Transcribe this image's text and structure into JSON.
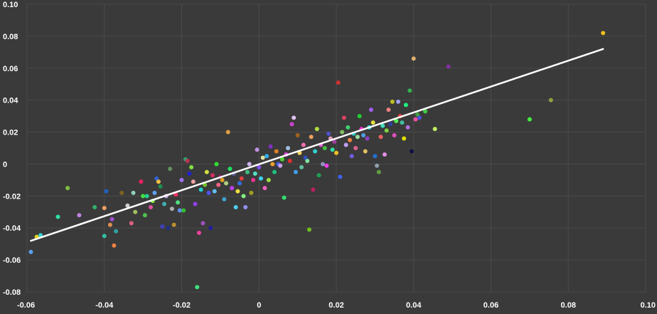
{
  "chart_data": {
    "type": "scatter",
    "title": "",
    "xlabel": "",
    "ylabel": "",
    "xlim": [
      -0.06,
      0.1
    ],
    "ylim": [
      -0.08,
      0.1
    ],
    "x_ticks": [
      "-0.06",
      "-0.04",
      "-0.02",
      "0",
      "0.02",
      "0.04",
      "0.06",
      "0.08",
      "0.10"
    ],
    "y_ticks": [
      "-0.08",
      "-0.06",
      "-0.04",
      "-0.02",
      "0",
      "0.02",
      "0.04",
      "0.06",
      "0.08",
      "0.10"
    ],
    "grid": true,
    "background": "#3a3a3a",
    "grid_color": "#4a4a4a",
    "trendline": {
      "color": "#ffffff",
      "from": [
        -0.059,
        -0.048
      ],
      "to": [
        0.089,
        0.072
      ]
    },
    "points": [
      [
        -0.059,
        -0.055,
        "#5aa0f0"
      ],
      [
        -0.0565,
        -0.0445,
        "#3ad5d5"
      ],
      [
        -0.0575,
        -0.0455,
        "#e0d020"
      ],
      [
        -0.052,
        -0.033,
        "#30e0a0"
      ],
      [
        -0.0495,
        -0.015,
        "#80c040"
      ],
      [
        -0.0465,
        -0.032,
        "#c080e0"
      ],
      [
        -0.0425,
        -0.027,
        "#30b070"
      ],
      [
        -0.04,
        -0.0275,
        "#f0a060"
      ],
      [
        -0.0395,
        -0.017,
        "#2060c0"
      ],
      [
        -0.04,
        -0.045,
        "#30c0a0"
      ],
      [
        -0.0385,
        -0.038,
        "#e09050"
      ],
      [
        -0.038,
        -0.0345,
        "#a050d0"
      ],
      [
        -0.0375,
        -0.051,
        "#f08040"
      ],
      [
        -0.037,
        -0.042,
        "#30a0a0"
      ],
      [
        -0.0355,
        -0.018,
        "#806020"
      ],
      [
        -0.034,
        -0.026,
        "#d0d0d0"
      ],
      [
        -0.033,
        -0.037,
        "#e06080"
      ],
      [
        -0.032,
        -0.03,
        "#a0c060"
      ],
      [
        -0.0325,
        -0.018,
        "#90d0c0"
      ],
      [
        -0.0305,
        -0.011,
        "#f02060"
      ],
      [
        -0.03,
        -0.02,
        "#40e040"
      ],
      [
        -0.0295,
        -0.032,
        "#50c050"
      ],
      [
        -0.029,
        -0.02,
        "#20d090"
      ],
      [
        -0.028,
        -0.027,
        "#e050a0"
      ],
      [
        -0.0275,
        -0.023,
        "#80f040"
      ],
      [
        -0.027,
        -0.018,
        "#60a0f0"
      ],
      [
        -0.0265,
        -0.009,
        "#3060d0"
      ],
      [
        -0.026,
        -0.011,
        "#f0c040"
      ],
      [
        -0.0255,
        -0.014,
        "#209050"
      ],
      [
        -0.025,
        -0.039,
        "#4040c0"
      ],
      [
        -0.0245,
        -0.025,
        "#40b0b0"
      ],
      [
        -0.024,
        -0.02,
        "#c0a0e0"
      ],
      [
        -0.0235,
        -0.04,
        "#203080"
      ],
      [
        -0.023,
        -0.003,
        "#609060"
      ],
      [
        -0.0225,
        -0.028,
        "#b0b0b0"
      ],
      [
        -0.022,
        -0.038,
        "#c09030"
      ],
      [
        -0.0215,
        -0.019,
        "#f03060"
      ],
      [
        -0.021,
        -0.024,
        "#50e080"
      ],
      [
        -0.0205,
        -0.029,
        "#6090f0"
      ],
      [
        -0.02,
        -0.01,
        "#a070f0"
      ],
      [
        -0.0195,
        -0.029,
        "#30c030"
      ],
      [
        -0.019,
        0.003,
        "#30a070"
      ],
      [
        -0.0185,
        0.002,
        "#c03050"
      ],
      [
        -0.018,
        -0.006,
        "#2020d0"
      ],
      [
        -0.0175,
        -0.002,
        "#80e040"
      ],
      [
        -0.017,
        -0.011,
        "#f0a0a0"
      ],
      [
        -0.0165,
        -0.025,
        "#9040f0"
      ],
      [
        -0.016,
        -0.077,
        "#40e080"
      ],
      [
        -0.0155,
        -0.043,
        "#f040a0"
      ],
      [
        -0.015,
        -0.016,
        "#20d0d0"
      ],
      [
        -0.0145,
        -0.037,
        "#a050c0"
      ],
      [
        -0.014,
        -0.013,
        "#70c020"
      ],
      [
        -0.0135,
        -0.005,
        "#d0e040"
      ],
      [
        -0.013,
        -0.018,
        "#5050f0"
      ],
      [
        -0.0125,
        -0.04,
        "#2020a0"
      ],
      [
        -0.012,
        -0.007,
        "#d03060"
      ],
      [
        -0.0115,
        -0.017,
        "#60c0f0"
      ],
      [
        -0.011,
        0.0,
        "#30e030"
      ],
      [
        -0.0105,
        -0.013,
        "#f06080"
      ],
      [
        -0.01,
        -0.008,
        "#902060"
      ],
      [
        -0.0095,
        -0.01,
        "#e0a020"
      ],
      [
        -0.009,
        -0.022,
        "#40a0d0"
      ],
      [
        -0.0085,
        -0.012,
        "#b0d080"
      ],
      [
        -0.008,
        0.02,
        "#e0a040"
      ],
      [
        -0.0075,
        -0.003,
        "#20e060"
      ],
      [
        -0.007,
        -0.015,
        "#c040f0"
      ],
      [
        -0.0065,
        -0.006,
        "#6060a0"
      ],
      [
        -0.006,
        -0.027,
        "#50d0f0"
      ],
      [
        -0.0055,
        -0.017,
        "#f0e040"
      ],
      [
        -0.005,
        -0.012,
        "#3070e0"
      ],
      [
        -0.0045,
        -0.009,
        "#e04040"
      ],
      [
        -0.004,
        -0.02,
        "#80f080"
      ],
      [
        -0.0035,
        -0.027,
        "#9090f0"
      ],
      [
        -0.003,
        -0.005,
        "#40c080"
      ],
      [
        -0.0025,
        0.0,
        "#d0b0f0"
      ],
      [
        -0.002,
        -0.018,
        "#a0a020"
      ],
      [
        -0.0015,
        -0.01,
        "#f03090"
      ],
      [
        -0.001,
        -0.006,
        "#50e0c0"
      ],
      [
        -0.0005,
        0.009,
        "#c090e0"
      ],
      [
        0.0,
        -0.002,
        "#8050f0"
      ],
      [
        0.0005,
        -0.009,
        "#40d0f0"
      ],
      [
        0.001,
        0.004,
        "#e0e0a0"
      ],
      [
        0.0015,
        -0.015,
        "#f060c0"
      ],
      [
        0.002,
        0.005,
        "#30b0f0"
      ],
      [
        0.0025,
        -0.01,
        "#a0e040"
      ],
      [
        0.003,
        0.011,
        "#8030c0"
      ],
      [
        0.0035,
        0.0,
        "#f0a030"
      ],
      [
        0.004,
        -0.005,
        "#20c080"
      ],
      [
        0.0045,
        0.008,
        "#e08020"
      ],
      [
        0.005,
        0.0,
        "#4060e0"
      ],
      [
        0.0055,
        -0.001,
        "#d0a0f0"
      ],
      [
        0.006,
        0.003,
        "#50d030"
      ],
      [
        0.0065,
        -0.021,
        "#30e070"
      ],
      [
        0.007,
        0.006,
        "#f050f0"
      ],
      [
        0.0075,
        0.01,
        "#a0c0e0"
      ],
      [
        0.008,
        0.002,
        "#e03030"
      ],
      [
        0.0085,
        0.025,
        "#d040d0"
      ],
      [
        0.009,
        0.029,
        "#e0c0f0"
      ],
      [
        0.0095,
        -0.005,
        "#40a0f0"
      ],
      [
        0.01,
        0.018,
        "#a06020"
      ],
      [
        0.0105,
        0.007,
        "#f0d060"
      ],
      [
        0.011,
        -0.002,
        "#60c0a0"
      ],
      [
        0.0115,
        0.012,
        "#f070b0"
      ],
      [
        0.012,
        0.004,
        "#3050c0"
      ],
      [
        0.0125,
        0.002,
        "#80e0a0"
      ],
      [
        0.013,
        -0.041,
        "#70c020"
      ],
      [
        0.0135,
        0.017,
        "#f0a060"
      ],
      [
        0.014,
        -0.016,
        "#c02060"
      ],
      [
        0.0145,
        0.008,
        "#30d0d0"
      ],
      [
        0.015,
        0.022,
        "#b0e040"
      ],
      [
        0.0155,
        -0.007,
        "#20a050"
      ],
      [
        0.016,
        0.012,
        "#e060d0"
      ],
      [
        0.0165,
        0.0,
        "#9090c0"
      ],
      [
        0.017,
        0.01,
        "#40c040"
      ],
      [
        0.0175,
        -0.001,
        "#f040f0"
      ],
      [
        0.018,
        0.019,
        "#5050d0"
      ],
      [
        0.0185,
        0.016,
        "#e0a0c0"
      ],
      [
        0.019,
        0.009,
        "#30e0a0"
      ],
      [
        0.0195,
        0.014,
        "#a040a0"
      ],
      [
        0.02,
        0.007,
        "#f0c020"
      ],
      [
        0.0205,
        0.051,
        "#d03030"
      ],
      [
        0.021,
        -0.008,
        "#4060f0"
      ],
      [
        0.0215,
        0.02,
        "#80c060"
      ],
      [
        0.022,
        0.029,
        "#e04060"
      ],
      [
        0.0225,
        0.012,
        "#c0a0f0"
      ],
      [
        0.023,
        0.023,
        "#40d070"
      ],
      [
        0.0235,
        0.015,
        "#f08040"
      ],
      [
        0.024,
        0.005,
        "#7060e0"
      ],
      [
        0.0245,
        0.019,
        "#30c0c0"
      ],
      [
        0.025,
        0.01,
        "#e06090"
      ],
      [
        0.0255,
        0.017,
        "#a0e0a0"
      ],
      [
        0.026,
        0.03,
        "#20d030"
      ],
      [
        0.0265,
        0.022,
        "#f030d0"
      ],
      [
        0.027,
        0.018,
        "#50a0e0"
      ],
      [
        0.0275,
        0.008,
        "#e0c060"
      ],
      [
        0.028,
        0.016,
        "#9040c0"
      ],
      [
        0.0285,
        0.023,
        "#30e0e0"
      ],
      [
        0.029,
        0.034,
        "#a060f0"
      ],
      [
        0.0295,
        0.026,
        "#e0e040"
      ],
      [
        0.03,
        0.005,
        "#2070d0"
      ],
      [
        0.0305,
        -0.001,
        "#90a0b0"
      ],
      [
        0.031,
        -0.005,
        "#60a040"
      ],
      [
        0.0315,
        0.017,
        "#f06060"
      ],
      [
        0.032,
        0.024,
        "#40e0c0"
      ],
      [
        0.0325,
        0.006,
        "#e090e0"
      ],
      [
        0.033,
        0.021,
        "#80d040"
      ],
      [
        0.0335,
        0.034,
        "#f08080"
      ],
      [
        0.034,
        0.025,
        "#3040a0"
      ],
      [
        0.0345,
        0.039,
        "#c0c020"
      ],
      [
        0.035,
        0.018,
        "#e050c0"
      ],
      [
        0.0355,
        0.027,
        "#50f050"
      ],
      [
        0.036,
        0.039,
        "#a0a0f0"
      ],
      [
        0.0365,
        0.03,
        "#f04040"
      ],
      [
        0.037,
        0.026,
        "#40c0a0"
      ],
      [
        0.0375,
        0.016,
        "#e0e000"
      ],
      [
        0.038,
        0.037,
        "#20f080"
      ],
      [
        0.0385,
        0.023,
        "#b070e0"
      ],
      [
        0.039,
        0.046,
        "#30b050"
      ],
      [
        0.0395,
        0.008,
        "#101040"
      ],
      [
        0.04,
        0.066,
        "#e0b070"
      ],
      [
        0.0405,
        0.028,
        "#f050a0"
      ],
      [
        0.041,
        0.031,
        "#40a040"
      ],
      [
        0.0415,
        0.029,
        "#5050e0"
      ],
      [
        0.043,
        0.033,
        "#40d040"
      ],
      [
        0.0455,
        0.022,
        "#c0f060"
      ],
      [
        0.049,
        0.061,
        "#8030a0"
      ],
      [
        0.07,
        0.028,
        "#40f040"
      ],
      [
        0.0755,
        0.04,
        "#90a040"
      ],
      [
        0.089,
        0.082,
        "#f0c020"
      ]
    ]
  }
}
